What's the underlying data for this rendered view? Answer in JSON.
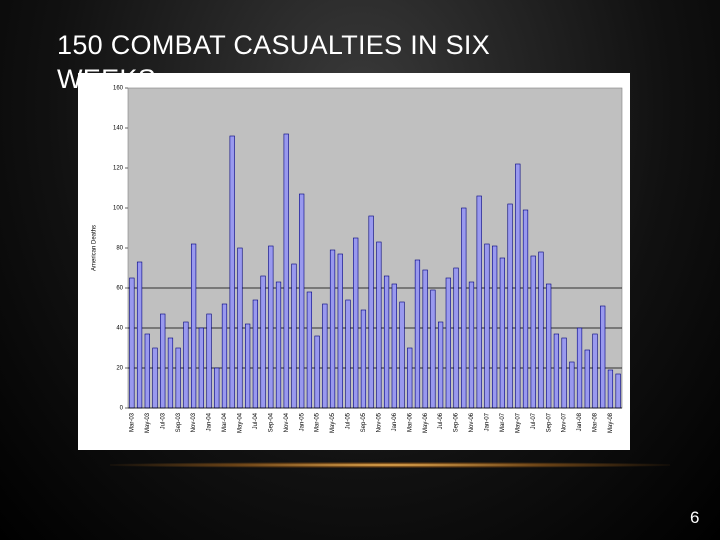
{
  "title": "150 COMBAT CASUALTIES IN SIX WEEKS",
  "page_number": "6",
  "chart_data": {
    "type": "bar",
    "y_label": "American Deaths",
    "categories": [
      "Mar-03",
      null,
      "May-03",
      null,
      "Jul-03",
      null,
      "Sep-03",
      null,
      "Nov-03",
      null,
      "Jan-04",
      null,
      "Mar-04",
      null,
      "May-04",
      null,
      "Jul-04",
      null,
      "Sep-04",
      null,
      "Nov-04",
      null,
      "Jan-05",
      null,
      "Mar-05",
      null,
      "May-05",
      null,
      "Jul-05",
      null,
      "Sep-05",
      null,
      "Nov-05",
      null,
      "Jan-06",
      null,
      "Mar-06",
      null,
      "May-06",
      null,
      "Jul-06",
      null,
      "Sep-06",
      null,
      "Nov-06",
      null,
      "Jan-07",
      null,
      "Mar-07",
      null,
      "May-07",
      null,
      "Jul-07",
      null,
      "Sep-07",
      null,
      "Nov-07",
      null,
      "Jan-08",
      null,
      "Mar-08",
      null,
      "May-08",
      null
    ],
    "values": [
      65,
      73,
      37,
      30,
      47,
      35,
      30,
      43,
      82,
      40,
      47,
      20,
      52,
      136,
      80,
      42,
      54,
      66,
      81,
      63,
      137,
      72,
      107,
      58,
      36,
      52,
      79,
      77,
      54,
      85,
      49,
      96,
      83,
      66,
      62,
      53,
      30,
      74,
      69,
      59,
      43,
      65,
      70,
      100,
      63,
      106,
      82,
      81,
      75,
      102,
      122,
      99,
      76,
      78,
      62,
      37,
      35,
      23,
      40,
      29,
      37,
      51,
      19,
      17
    ],
    "color": "#9999ee",
    "ylim": [
      0,
      160
    ],
    "yticks": [
      0,
      20,
      40,
      60,
      80,
      100,
      120,
      140,
      160
    ],
    "reference_lines": [
      20,
      40,
      60
    ]
  }
}
